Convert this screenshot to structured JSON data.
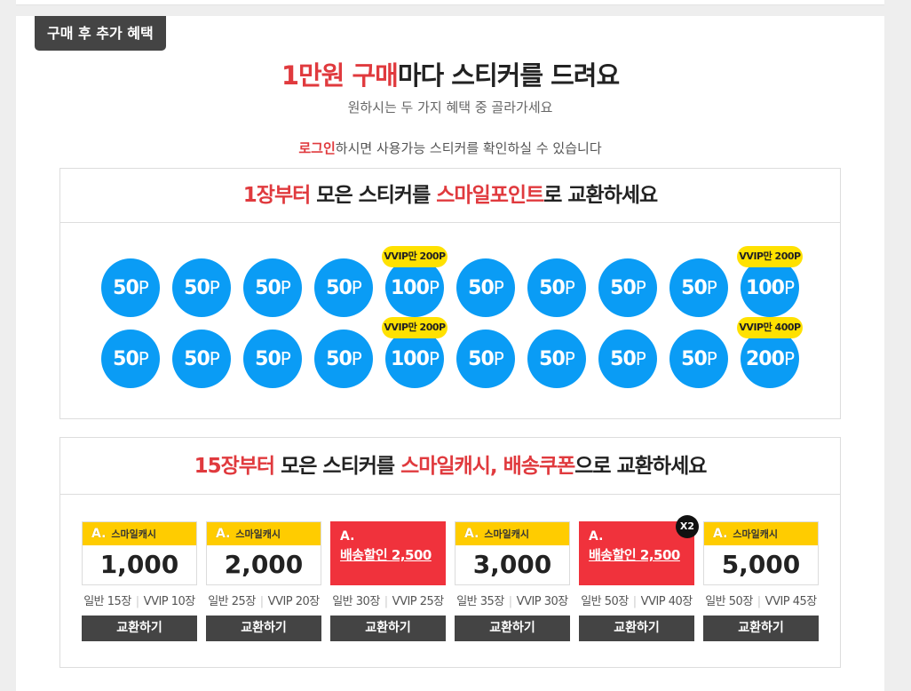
{
  "tag": "구매 후 추가 혜택",
  "headline": {
    "red": "1만원 구매",
    "rest": "마다 스티커를 드려요"
  },
  "subtitle": "원하시는 두 가지 혜택 중 골라가세요",
  "login_note": {
    "link": "로그인",
    "rest": "하시면 사용가능 스티커를 확인하실 수 있습니다"
  },
  "section1": {
    "title_parts": [
      {
        "text": "1장부터",
        "red": true
      },
      {
        "text": " 모은 스티커를 ",
        "red": false
      },
      {
        "text": "스마일포인트",
        "red": true
      },
      {
        "text": "로 교환하세요",
        "red": false
      }
    ],
    "point_unit": "P",
    "rows": [
      [
        {
          "value": "50"
        },
        {
          "value": "50"
        },
        {
          "value": "50"
        },
        {
          "value": "50"
        },
        {
          "value": "100",
          "vip": "VVIP만 200P"
        },
        {
          "value": "50"
        },
        {
          "value": "50"
        },
        {
          "value": "50"
        },
        {
          "value": "50"
        },
        {
          "value": "100",
          "vip": "VVIP만 200P"
        }
      ],
      [
        {
          "value": "50"
        },
        {
          "value": "50"
        },
        {
          "value": "50"
        },
        {
          "value": "50"
        },
        {
          "value": "100",
          "vip": "VVIP만 200P"
        },
        {
          "value": "50"
        },
        {
          "value": "50"
        },
        {
          "value": "50"
        },
        {
          "value": "50"
        },
        {
          "value": "200",
          "vip": "VVIP만 400P"
        }
      ]
    ]
  },
  "section2": {
    "title_parts": [
      {
        "text": "15장부터",
        "red": true
      },
      {
        "text": " 모은 스티커를 ",
        "red": false
      },
      {
        "text": "스마일캐시, 배송쿠폰",
        "red": true
      },
      {
        "text": "으로 교환하세요",
        "red": false
      }
    ],
    "logo_text": "A.",
    "cash_label": "스마일캐시",
    "button_label": "교환하기",
    "coupons": [
      {
        "type": "cash",
        "amount": "1,000",
        "normal": "일반 15장",
        "vvip": "VVIP 10장"
      },
      {
        "type": "cash",
        "amount": "2,000",
        "normal": "일반 25장",
        "vvip": "VVIP 20장"
      },
      {
        "type": "shipping",
        "label": "배송할인 2,500",
        "normal": "일반 30장",
        "vvip": "VVIP 25장"
      },
      {
        "type": "cash",
        "amount": "3,000",
        "normal": "일반 35장",
        "vvip": "VVIP 30장"
      },
      {
        "type": "shipping",
        "label": "배송할인 2,500",
        "badge": "X2",
        "normal": "일반 50장",
        "vvip": "VVIP 40장"
      },
      {
        "type": "cash",
        "amount": "5,000",
        "normal": "일반 50장",
        "vvip": "VVIP 45장"
      }
    ]
  },
  "colors": {
    "accent_red": "#e03a3e",
    "sticker_blue": "#0a9cf5",
    "vip_yellow": "#ffe100",
    "cash_yellow": "#ffcc00",
    "dark_button": "#444444"
  }
}
